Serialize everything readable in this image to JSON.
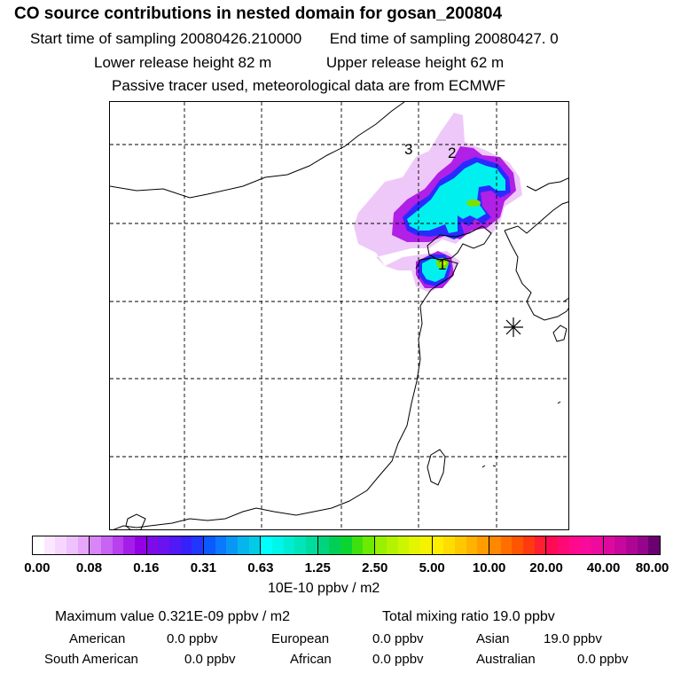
{
  "title": "CO  source contributions in nested domain for gosan_200804",
  "header": {
    "start_label": "Start time of sampling 20080426.210000",
    "end_label": "End time of sampling 20080427.     0",
    "lower_label": "Lower release height   82 m",
    "upper_label": "Upper release height   62 m",
    "tracer_note": "Passive tracer used, meteorological data are from ECMWF"
  },
  "map": {
    "labels": [
      "1",
      "2",
      "3"
    ],
    "receptor_marker": "asterisk-icon"
  },
  "colorbar": {
    "ticks": [
      "0.00",
      "0.08",
      "0.16",
      "0.31",
      "0.63",
      "1.25",
      "2.50",
      "5.00",
      "10.00",
      "20.00",
      "40.00",
      "80.00"
    ],
    "units": "10E-10 ppbv / m2",
    "segments": [
      [
        "#ffffff",
        "#fbe8ff",
        "#f6d6ff",
        "#efc1fd",
        "#e6a6fb"
      ],
      [
        "#d785f7",
        "#c863f2",
        "#b840ee",
        "#a51ee8",
        "#9400e4"
      ],
      [
        "#7d0ce8",
        "#6a12f0",
        "#5218f6",
        "#3820fb",
        "#2236ff"
      ],
      [
        "#0b5aff",
        "#0a78ff",
        "#0997f5",
        "#06b4ee",
        "#03cbe6"
      ],
      [
        "#00ffff",
        "#00f6ea",
        "#00edd3",
        "#00e6b9",
        "#00dc9d"
      ],
      [
        "#00d47e",
        "#00cf57",
        "#0ad432",
        "#3fe010",
        "#6ceb00"
      ],
      [
        "#99f000",
        "#b4f200",
        "#ccf500",
        "#e4f500",
        "#f5f200"
      ],
      [
        "#ffee00",
        "#ffdd00",
        "#ffc800",
        "#ffb300",
        "#ff9c00"
      ],
      [
        "#ff8800",
        "#ff6f00",
        "#ff5500",
        "#ff3a10",
        "#ff1f30"
      ],
      [
        "#ff0a55",
        "#ff0a75",
        "#ff0a8c",
        "#f80a9a",
        "#ee0a9f"
      ],
      [
        "#de0aa0",
        "#c8079c",
        "#b00594",
        "#95048c",
        "#6a0070"
      ]
    ]
  },
  "stats": {
    "max_value": "Maximum value  0.321E-09 ppbv / m2",
    "total_mixing": "Total mixing ratio        19.0 ppbv",
    "regions": [
      {
        "name": "American",
        "value": "0.0 ppbv"
      },
      {
        "name": "European",
        "value": "0.0 ppbv"
      },
      {
        "name": "Asian",
        "value": "19.0 ppbv"
      },
      {
        "name": "South American",
        "value": "0.0 ppbv"
      },
      {
        "name": "African",
        "value": "0.0 ppbv"
      },
      {
        "name": "Australian",
        "value": "0.0 ppbv"
      }
    ]
  },
  "colors": {
    "plume_light": "#e8b6f5",
    "plume_purple": "#b020e6",
    "plume_blue": "#2a2aff",
    "plume_cyan": "#00f0f0",
    "plume_green": "#7be000"
  }
}
